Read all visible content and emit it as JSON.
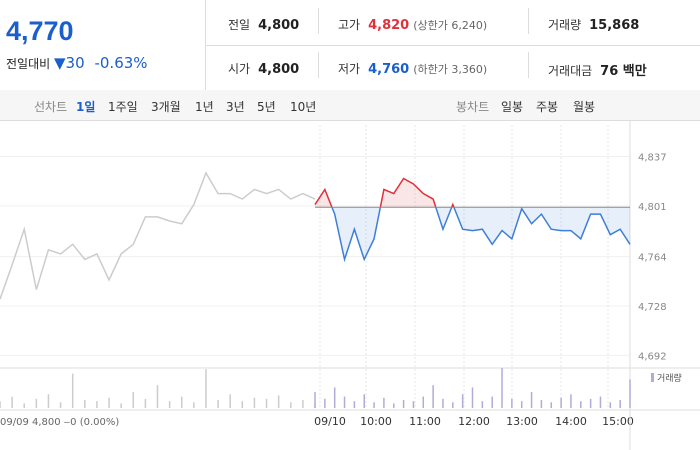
{
  "header": {
    "price": "4,770",
    "change_label": "전일대비",
    "change": "30",
    "change_rate": "-0.63%"
  },
  "summary": [
    [
      {
        "label": "전일",
        "value": "4,800"
      },
      {
        "label": "고가",
        "value": "4,820",
        "note": "(상한가 6,240)"
      },
      {
        "label": "거래량",
        "value": "15,868"
      }
    ],
    [
      {
        "label": "시가",
        "value": "4,800"
      },
      {
        "label": "저가",
        "value": "4,760",
        "note": "(하한가 3,360)"
      },
      {
        "label": "거래대금",
        "value": "76 백만"
      }
    ]
  ],
  "tabs": {
    "line_label": "선차트",
    "line_tabs": [
      "1일",
      "1주일",
      "3개월",
      "1년",
      "3년",
      "5년",
      "10년"
    ],
    "candle_label": "봉차트",
    "candle_tabs": [
      "일봉",
      "주봉",
      "월봉"
    ]
  },
  "chart_data": {
    "type": "line",
    "ylim": [
      4685,
      4860
    ],
    "yticks": [
      {
        "value": 4837,
        "label": "4,837"
      },
      {
        "value": 4801,
        "label": "4,801"
      },
      {
        "value": 4764,
        "label": "4,764"
      },
      {
        "value": 4728,
        "label": "4,728"
      },
      {
        "value": 4692,
        "label": "4,692"
      }
    ],
    "baseline": 4800,
    "time_labels": [
      "09/10",
      "10:00",
      "11:00",
      "12:00",
      "13:00",
      "14:00",
      "15:00"
    ],
    "previous_day_label": "09/09  4,800 ‒0 (0.00%)",
    "volume_label": "거래량",
    "series": [
      {
        "color": "#cccccc",
        "volume_color": "#cccccc",
        "values": [
          4733,
          4758,
          4784,
          4740,
          4769,
          4766,
          4773,
          4762,
          4766,
          4747,
          4766,
          4773,
          4793,
          4793,
          4790,
          4788,
          4802,
          4825,
          4810,
          4810,
          4806,
          4813,
          4810,
          4813,
          4806,
          4810,
          4806
        ],
        "volume": [
          6,
          10,
          4,
          8,
          12,
          5,
          30,
          7,
          6,
          9,
          4,
          14,
          8,
          20,
          6,
          10,
          5,
          34,
          7,
          12,
          6,
          9,
          8,
          11,
          5,
          7,
          4
        ]
      },
      {
        "up_color": "#e0303a",
        "down_color": "#3d7fd9",
        "volume_color": "#b3aad9",
        "values": [
          4802,
          4813,
          4795,
          4762,
          4784,
          4762,
          4777,
          4813,
          4810,
          4821,
          4817,
          4810,
          4806,
          4784,
          4802,
          4784,
          4783,
          4784,
          4773,
          4783,
          4777,
          4799,
          4788,
          4795,
          4784,
          4783,
          4783,
          4777,
          4795,
          4795,
          4780,
          4784,
          4773
        ],
        "volume": [
          14,
          8,
          18,
          10,
          6,
          12,
          5,
          9,
          4,
          7,
          6,
          10,
          20,
          8,
          5,
          12,
          18,
          6,
          10,
          35,
          8,
          6,
          14,
          7,
          5,
          9,
          12,
          6,
          8,
          10,
          5,
          7,
          25
        ]
      }
    ]
  }
}
